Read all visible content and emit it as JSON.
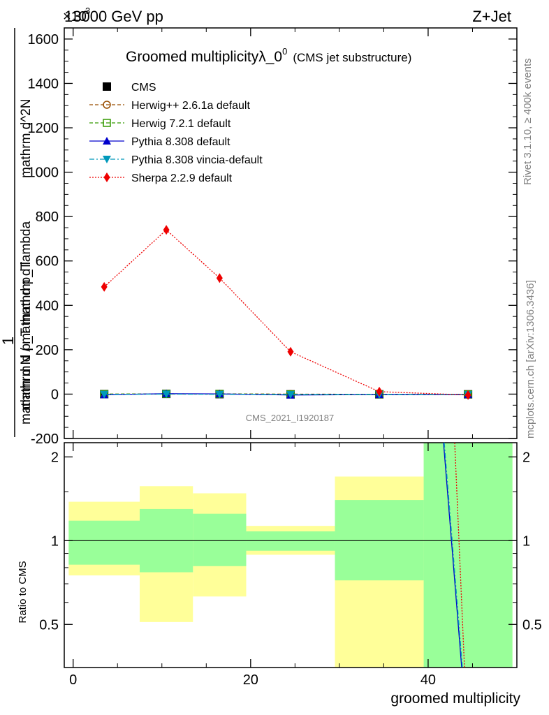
{
  "header": {
    "energy": "13000 GeV pp",
    "process": "Z+Jet",
    "exponent": "×10",
    "exponent_power": "3"
  },
  "side_labels": {
    "rivet": "Rivet 3.1.10, ≥ 400k events",
    "mcplots": "mcplots.cern.ch [arXiv:1306.3436]"
  },
  "analysis_id": "CMS_2021_I1920187",
  "chart_data": {
    "type": "line",
    "title": "Groomed multiplicityλ_0",
    "title_sup": "0",
    "title_suffix": "(CMS jet substructure)",
    "xlabel": "groomed multiplicity",
    "ylabel_parts": [
      "1",
      "mathrm d N / mathrm d p_T",
      "mathrm d^2N",
      "mathrm d p_T mathrm d lambda"
    ],
    "ratio_ylabel": "Ratio to CMS",
    "xlim": [
      -1,
      50
    ],
    "ylim": [
      -200,
      1650
    ],
    "ratio_ylim": [
      0.35,
      2.25
    ],
    "x_ticks": [
      0,
      20,
      40
    ],
    "y_ticks": [
      -200,
      0,
      200,
      400,
      600,
      800,
      1000,
      1200,
      1400,
      1600
    ],
    "ratio_ticks": [
      0.5,
      1,
      2
    ],
    "x": [
      3.5,
      10.5,
      16.5,
      24.5,
      34.5,
      44.5
    ],
    "bin_edges": [
      -0.5,
      7.5,
      13.5,
      19.5,
      29.5,
      39.5,
      49.5
    ],
    "series": [
      {
        "name": "CMS",
        "color": "#000000",
        "marker": "square-filled",
        "style": "none",
        "values": [
          0,
          1,
          0,
          -1,
          -1,
          -1
        ]
      },
      {
        "name": "Herwig++ 2.6.1a default",
        "color": "#994d00",
        "marker": "circle-open",
        "style": "dashed",
        "values": [
          0,
          1,
          1,
          0,
          -1,
          -1
        ]
      },
      {
        "name": "Herwig 7.2.1 default",
        "color": "#339900",
        "marker": "square-open",
        "style": "dashed",
        "values": [
          0,
          1,
          1,
          -1,
          -1,
          -1
        ]
      },
      {
        "name": "Pythia 8.308 default",
        "color": "#0000cc",
        "marker": "triangle-up",
        "style": "solid",
        "values": [
          -3,
          2,
          1,
          -4,
          -2,
          -2
        ]
      },
      {
        "name": "Pythia 8.308 vincia-default",
        "color": "#0099bb",
        "marker": "triangle-down",
        "style": "dashdot",
        "values": [
          -1,
          0,
          -1,
          -2,
          -2,
          -2
        ]
      },
      {
        "name": "Sherpa 2.2.9 default",
        "color": "#ee0000",
        "marker": "diamond",
        "style": "dotted",
        "values": [
          483,
          740,
          523,
          191,
          11,
          -4
        ]
      }
    ],
    "ratio_bands": {
      "green": [
        [
          0.82,
          1.18
        ],
        [
          0.77,
          1.3
        ],
        [
          0.81,
          1.25
        ],
        [
          0.92,
          1.08
        ],
        [
          0.72,
          1.4
        ],
        [
          0.35,
          2.25
        ]
      ],
      "yellow": [
        [
          0.75,
          1.38
        ],
        [
          0.51,
          1.57
        ],
        [
          0.63,
          1.48
        ],
        [
          0.89,
          1.13
        ],
        [
          0.35,
          1.7
        ],
        [
          0.35,
          2.25
        ]
      ]
    }
  }
}
